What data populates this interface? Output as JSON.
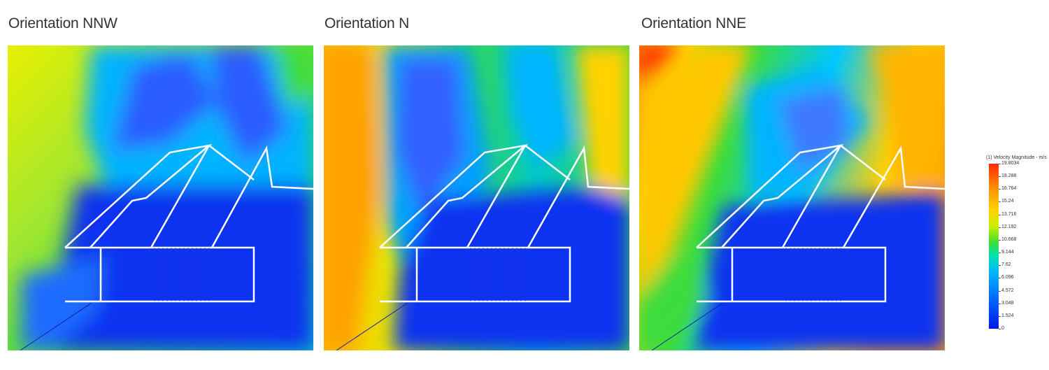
{
  "panels": [
    {
      "title": "Orientation NNW"
    },
    {
      "title": "Orientation N"
    },
    {
      "title": "Orientation NNE"
    }
  ],
  "legend": {
    "title": "(1) Velocity Magnitude - m/s",
    "ticks": [
      "19.8034",
      "18.288",
      "16.764",
      "15.24",
      "13.716",
      "12.192",
      "10.668",
      "9.144",
      "7.62",
      "6.096",
      "4.572",
      "3.048",
      "1.524",
      "0"
    ],
    "colors": {
      "max": "#ff2a00",
      "high": "#ff8c00",
      "upper_mid": "#ffd200",
      "mid": "#3cdc3c",
      "lower_mid": "#00b4ff",
      "low": "#0070ff",
      "min": "#0018e8"
    }
  }
}
